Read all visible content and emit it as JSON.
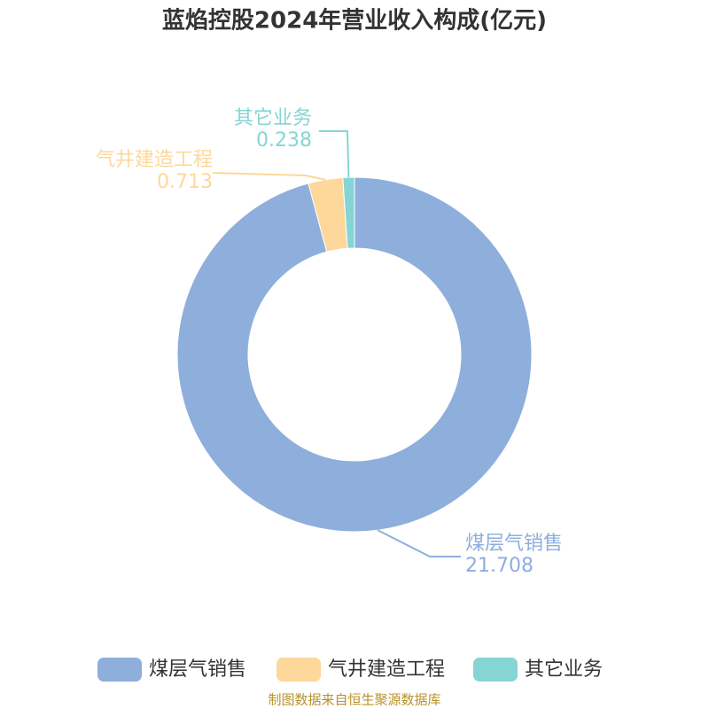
{
  "chart_data": {
    "type": "pie",
    "title": "蓝焰控股2024年营业收入构成(亿元)",
    "categories": [
      "煤层气销售",
      "气井建造工程",
      "其它业务"
    ],
    "values": [
      21.708,
      0.713,
      0.238
    ],
    "colors": [
      "#8eaedc",
      "#fdd89a",
      "#86d5d5"
    ],
    "legend": "bottom",
    "source": "制图数据来自恒生聚源数据库"
  }
}
